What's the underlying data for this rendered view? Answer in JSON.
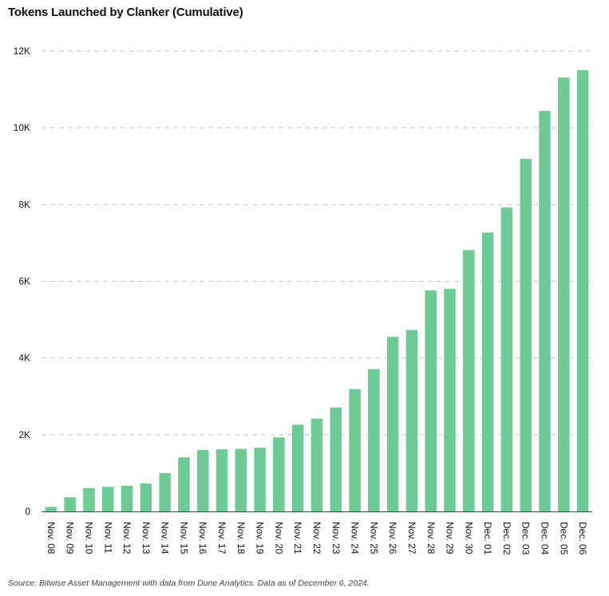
{
  "chart_data": {
    "type": "bar",
    "title": "Tokens Launched by Clanker (Cumulative)",
    "xlabel": "",
    "ylabel": "",
    "categories": [
      "Nov. 08",
      "Nov. 09",
      "Nov. 10",
      "Nov. 11",
      "Nov. 12",
      "Nov. 13",
      "Nov. 14",
      "Nov. 15",
      "Nov. 16",
      "Nov. 17",
      "Nov. 18",
      "Nov. 19",
      "Nov. 20",
      "Nov. 21",
      "Nov. 22",
      "Nov. 23",
      "Nov. 24",
      "Nov. 25",
      "Nov. 26",
      "Nov. 27",
      "Nov. 28",
      "Nov. 29",
      "Nov. 30",
      "Dec. 01",
      "Dec. 02",
      "Dec. 03",
      "Dec. 04",
      "Dec. 05",
      "Dec. 06"
    ],
    "values": [
      120,
      370,
      610,
      640,
      670,
      730,
      1000,
      1410,
      1600,
      1620,
      1630,
      1660,
      1930,
      2260,
      2420,
      2710,
      3190,
      3710,
      4550,
      4730,
      5760,
      5800,
      6810,
      7270,
      7920,
      9190,
      10440,
      11310,
      11500
    ],
    "ylim": [
      0,
      12000
    ],
    "yticks": [
      0,
      2000,
      4000,
      6000,
      8000,
      10000,
      12000
    ],
    "ytick_labels": [
      "0",
      "2K",
      "4K",
      "6K",
      "8K",
      "10K",
      "12K"
    ],
    "grid": true,
    "bar_color": "#6dcc96"
  },
  "source": "Source: Bitwise Asset Management with data from Dune Analytics. Data as of December 6, 2024."
}
